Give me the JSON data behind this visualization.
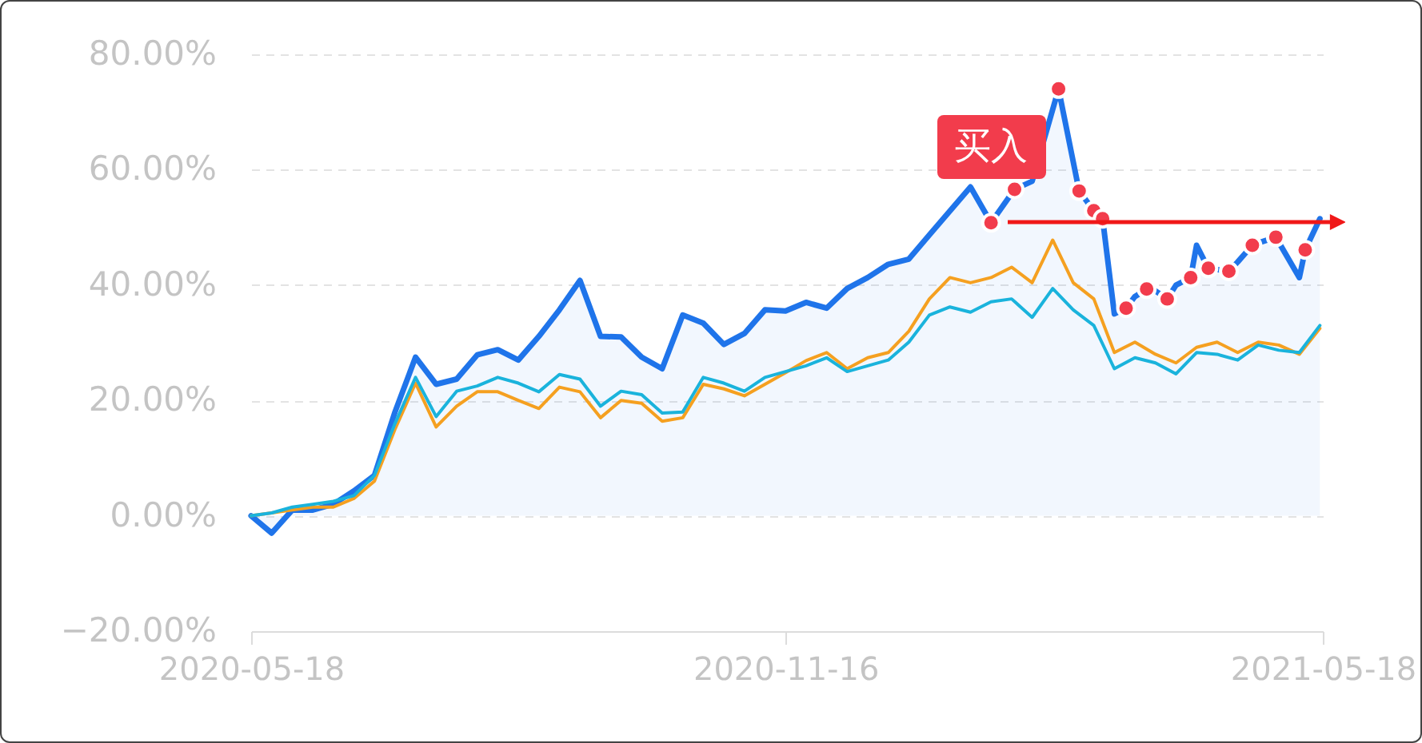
{
  "chart_data": {
    "type": "line",
    "x": [
      "2020-05-18",
      "2020-05-25",
      "2020-06-01",
      "2020-06-08",
      "2020-06-15",
      "2020-06-22",
      "2020-06-29",
      "2020-07-06",
      "2020-07-13",
      "2020-07-20",
      "2020-07-27",
      "2020-08-03",
      "2020-08-10",
      "2020-08-17",
      "2020-08-24",
      "2020-08-31",
      "2020-09-07",
      "2020-09-14",
      "2020-09-21",
      "2020-09-28",
      "2020-10-05",
      "2020-10-12",
      "2020-10-19",
      "2020-10-26",
      "2020-11-02",
      "2020-11-09",
      "2020-11-16",
      "2020-11-23",
      "2020-11-30",
      "2020-12-07",
      "2020-12-14",
      "2020-12-21",
      "2020-12-28",
      "2021-01-04",
      "2021-01-11",
      "2021-01-18",
      "2021-01-25",
      "2021-02-01",
      "2021-02-08",
      "2021-02-15",
      "2021-02-22",
      "2021-03-01",
      "2021-03-08",
      "2021-03-15",
      "2021-03-22",
      "2021-03-29",
      "2021-04-05",
      "2021-04-12",
      "2021-04-19",
      "2021-04-26",
      "2021-05-03",
      "2021-05-10",
      "2021-05-17"
    ],
    "series": [
      {
        "type": "area",
        "color": "#1f74ea",
        "x": [
          "2020-05-18",
          "2020-05-25",
          "2020-06-01",
          "2020-06-08",
          "2020-06-15",
          "2020-06-22",
          "2020-06-29",
          "2020-07-06",
          "2020-07-13",
          "2020-07-20",
          "2020-07-27",
          "2020-08-03",
          "2020-08-10",
          "2020-08-17",
          "2020-08-24",
          "2020-08-31",
          "2020-09-07",
          "2020-09-14",
          "2020-09-21",
          "2020-09-28",
          "2020-10-05",
          "2020-10-12",
          "2020-10-19",
          "2020-10-26",
          "2020-11-02",
          "2020-11-09",
          "2020-11-16",
          "2020-11-23",
          "2020-11-30",
          "2020-12-07",
          "2020-12-14",
          "2020-12-21",
          "2020-12-28",
          "2021-01-04",
          "2021-01-11",
          "2021-01-18",
          "2021-01-25",
          "2021-02-02",
          "2021-02-08",
          "2021-02-12",
          "2021-02-17",
          "2021-02-24",
          "2021-03-01",
          "2021-03-04",
          "2021-03-08",
          "2021-03-12",
          "2021-03-15",
          "2021-03-19",
          "2021-03-22",
          "2021-03-26",
          "2021-03-29",
          "2021-04-03",
          "2021-04-05",
          "2021-04-09",
          "2021-04-16",
          "2021-04-19",
          "2021-04-24",
          "2021-04-26",
          "2021-05-02",
          "2021-05-10",
          "2021-05-12",
          "2021-05-17"
        ],
        "values": [
          0,
          -3,
          1,
          1,
          2,
          4.3,
          7,
          18,
          27.5,
          22.8,
          23.7,
          27.9,
          28.8,
          27,
          31.1,
          35.7,
          40.8,
          31.1,
          31,
          27.5,
          25.5,
          34.8,
          33.4,
          29.7,
          31.6,
          35.7,
          35.5,
          37,
          36,
          39.4,
          41.3,
          43.6,
          44.5,
          48.7,
          null,
          57,
          50.8,
          56.6,
          58,
          null,
          74,
          56.3,
          52.9,
          51.5,
          35,
          36,
          38,
          39.3,
          39,
          37.6,
          40,
          41.3,
          46.9,
          42.9,
          42.4,
          44,
          46.9,
          47.3,
          48.3,
          41.3,
          46.1,
          51.5
        ]
      },
      {
        "color": "#f5a020",
        "values": [
          0,
          0.5,
          1,
          1.5,
          1.5,
          3,
          6,
          15,
          23,
          15.4,
          19,
          21.5,
          21.5,
          20,
          18.6,
          22.3,
          21.5,
          17,
          20,
          19.5,
          16.4,
          17,
          22.8,
          22,
          20.8,
          22.8,
          24.8,
          26.9,
          28.3,
          25.5,
          27.4,
          28.3,
          32,
          37.6,
          41.3,
          40.4,
          41.3,
          43.1,
          40.4,
          47.8,
          40.4,
          37.6,
          28.3,
          30.1,
          28,
          26.5,
          29.2,
          30.1,
          28.3,
          30.1,
          29.6,
          28,
          32.5
        ]
      },
      {
        "color": "#1ab3dc",
        "values": [
          0,
          0.5,
          1.5,
          2,
          2.5,
          3.5,
          7,
          16,
          24,
          17.2,
          21.6,
          22.5,
          24,
          23,
          21.5,
          24.5,
          23.7,
          19,
          21.6,
          21,
          17.8,
          18,
          24,
          23,
          21.6,
          24,
          25,
          26,
          27.4,
          25,
          26,
          27,
          30.1,
          34.8,
          36.2,
          35.3,
          37.1,
          37.6,
          34.4,
          39.4,
          35.7,
          33,
          25.5,
          27.4,
          26.5,
          24.6,
          28.3,
          28,
          27,
          29.6,
          28.7,
          28.3,
          33
        ]
      },
      {
        "type": "scatter",
        "marker": "circle",
        "color": "#f23c4c",
        "x": [
          "2021-01-25",
          "2021-02-02",
          "2021-02-17",
          "2021-02-24",
          "2021-03-01",
          "2021-03-04",
          "2021-03-12",
          "2021-03-19",
          "2021-03-26",
          "2021-04-03",
          "2021-04-09",
          "2021-04-16",
          "2021-04-24",
          "2021-05-02",
          "2021-05-12"
        ],
        "values": [
          50.8,
          56.6,
          74,
          56.3,
          52.9,
          51.5,
          36,
          39.3,
          37.6,
          41.3,
          42.9,
          42.4,
          46.9,
          48.3,
          46.1
        ]
      }
    ],
    "xlim": [
      "2020-05-18",
      "2021-05-18"
    ],
    "xticks": [
      "2020-05-18",
      "2020-11-16",
      "2021-05-18"
    ],
    "ylim": [
      -20,
      80
    ],
    "yticks": [
      {
        "value": -20,
        "label": "−20.00%"
      },
      {
        "value": 0,
        "label": "0.00%"
      },
      {
        "value": 20,
        "label": "20.00%"
      },
      {
        "value": 40,
        "label": "40.00%"
      },
      {
        "value": 60,
        "label": "60.00%"
      },
      {
        "value": 80,
        "label": "80.00%"
      }
    ],
    "annotations": [
      {
        "text": "买入",
        "x": "2021-01-25",
        "y": 50.8
      }
    ],
    "grid": "y",
    "marker": "none"
  }
}
